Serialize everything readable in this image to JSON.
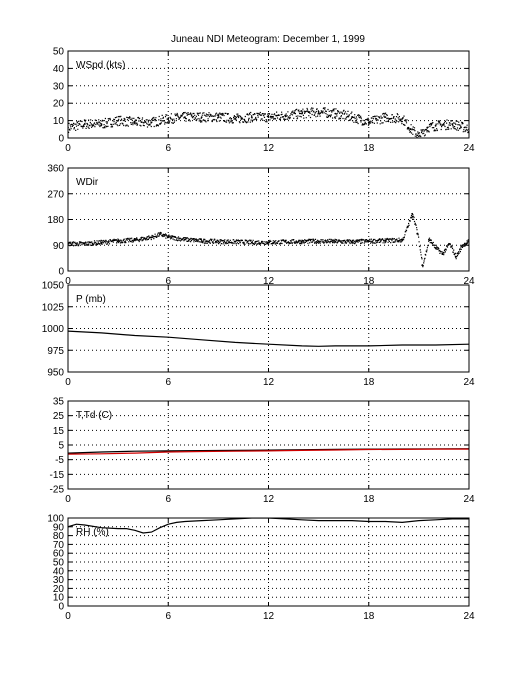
{
  "figure": {
    "title": "Juneau NDI Meteogram:  December  1, 1999"
  },
  "chart_data": [
    {
      "type": "scatter",
      "label": "WSpd (kts)",
      "xlim": [
        0,
        24
      ],
      "ylim": [
        0,
        50
      ],
      "xticks": [
        0,
        6,
        12,
        18,
        24
      ],
      "yticks": [
        0,
        10,
        20,
        30,
        40,
        50
      ],
      "grid": true,
      "series": [
        {
          "color": "#000000",
          "x": [
            0,
            1,
            2,
            3,
            4,
            5,
            6,
            7,
            8,
            9,
            10,
            11,
            12,
            13,
            14,
            15,
            16,
            17,
            18,
            19,
            20,
            20.5,
            21,
            21.5,
            22,
            23,
            24
          ],
          "y": [
            6,
            8,
            8,
            10,
            9,
            9,
            11,
            12,
            12,
            12,
            11,
            12,
            12,
            13,
            14,
            15,
            14,
            12,
            9,
            12,
            11,
            5,
            1,
            6,
            7,
            8,
            5
          ]
        }
      ]
    },
    {
      "type": "scatter",
      "label": "WDir",
      "xlim": [
        0,
        24
      ],
      "ylim": [
        0,
        360
      ],
      "xticks": [
        0,
        6,
        12,
        18,
        24
      ],
      "yticks": [
        0,
        90,
        180,
        270,
        360
      ],
      "grid": true,
      "series": [
        {
          "color": "#000000",
          "x": [
            0,
            1,
            2,
            3,
            4,
            5,
            5.5,
            6,
            7,
            8,
            9,
            10,
            11,
            12,
            13,
            14,
            15,
            16,
            17,
            18,
            19,
            20,
            20.6,
            20.9,
            21.2,
            21.6,
            22,
            22.4,
            22.8,
            23.2,
            23.6,
            24
          ],
          "y": [
            95,
            95,
            100,
            105,
            108,
            118,
            128,
            118,
            110,
            105,
            103,
            102,
            100,
            100,
            102,
            103,
            104,
            103,
            102,
            104,
            106,
            108,
            200,
            130,
            20,
            110,
            80,
            60,
            95,
            50,
            90,
            105
          ]
        }
      ]
    },
    {
      "type": "line",
      "label": "P (mb)",
      "xlim": [
        0,
        24
      ],
      "ylim": [
        950,
        1050
      ],
      "xticks": [
        0,
        6,
        12,
        18,
        24
      ],
      "yticks": [
        950,
        975,
        1000,
        1025,
        1050
      ],
      "grid": true,
      "series": [
        {
          "color": "#000000",
          "x": [
            0,
            2,
            4,
            6,
            8,
            10,
            12,
            14,
            15,
            16,
            18,
            20,
            22,
            24
          ],
          "y": [
            997,
            995,
            992,
            990,
            987,
            984,
            982,
            980,
            979.5,
            980,
            980,
            981,
            981,
            982
          ]
        }
      ]
    },
    {
      "type": "line",
      "label": "T,Td (C)",
      "xlim": [
        0,
        24
      ],
      "ylim": [
        -25,
        35
      ],
      "xticks": [
        0,
        6,
        12,
        18,
        24
      ],
      "yticks": [
        -25,
        -15,
        -5,
        5,
        15,
        25,
        35
      ],
      "grid": true,
      "series": [
        {
          "color": "#000000",
          "x": [
            0,
            2,
            4,
            6,
            8,
            10,
            12,
            14,
            16,
            18,
            20,
            22,
            24
          ],
          "y": [
            -0.5,
            0.2,
            0.8,
            1.0,
            1.2,
            1.3,
            1.5,
            1.8,
            2.0,
            2.2,
            2.3,
            2.4,
            2.5
          ]
        },
        {
          "color": "#d00000",
          "x": [
            0,
            2,
            4,
            6,
            8,
            10,
            12,
            14,
            16,
            18,
            20,
            22,
            24
          ],
          "y": [
            -1.2,
            -1.0,
            -0.5,
            0.2,
            0.6,
            0.8,
            1.0,
            1.3,
            1.6,
            1.9,
            2.0,
            2.2,
            2.2
          ]
        }
      ]
    },
    {
      "type": "line",
      "label": "RH (%)",
      "xlim": [
        0,
        24
      ],
      "ylim": [
        0,
        100
      ],
      "xticks": [
        0,
        6,
        12,
        18,
        24
      ],
      "yticks": [
        0,
        10,
        20,
        30,
        40,
        50,
        60,
        70,
        80,
        90,
        100
      ],
      "grid": true,
      "series": [
        {
          "color": "#000000",
          "x": [
            0,
            0.5,
            1,
            2,
            3,
            3.5,
            4,
            4.5,
            5,
            5.5,
            6,
            6.5,
            7,
            8,
            9,
            10,
            11,
            12,
            13,
            14,
            15,
            16,
            17,
            18,
            19,
            20,
            21,
            22,
            23,
            24
          ],
          "y": [
            90,
            93,
            92,
            89,
            88,
            88,
            86,
            83,
            84,
            89,
            93,
            95,
            96,
            97,
            98,
            99,
            100,
            100,
            99,
            98,
            97,
            97,
            97,
            96,
            96,
            95,
            97,
            98,
            99,
            99
          ]
        }
      ]
    }
  ]
}
